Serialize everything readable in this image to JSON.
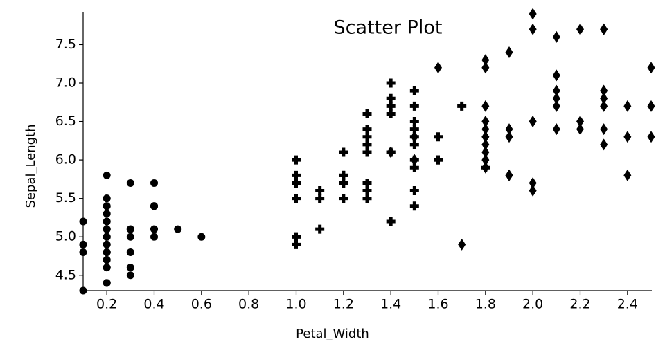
{
  "chart_data": {
    "type": "scatter",
    "title": "Scatter Plot",
    "xlabel": "Petal_Width",
    "ylabel": "Sepal_Length",
    "xlim": [
      0.1,
      2.5
    ],
    "ylim": [
      4.3,
      7.9
    ],
    "xticks": [
      0.2,
      0.4,
      0.6,
      0.8,
      {
        "value": 1,
        "label": "1.0"
      },
      1.2,
      1.4,
      1.6,
      1.8,
      {
        "value": 2,
        "label": "2.0"
      },
      2.2,
      2.4
    ],
    "yticks": [
      4.5,
      {
        "value": 5,
        "label": "5.0"
      },
      5.5,
      {
        "value": 6,
        "label": "6.0"
      },
      6.5,
      {
        "value": 7,
        "label": "7.0"
      },
      7.5
    ],
    "series": [
      {
        "marker": "circle",
        "color": "#000000",
        "x": [
          0.2,
          0.2,
          0.2,
          0.2,
          0.2,
          0.4,
          0.3,
          0.2,
          0.2,
          0.1,
          0.2,
          0.2,
          0.1,
          0.1,
          0.2,
          0.4,
          0.4,
          0.3,
          0.3,
          0.3,
          0.2,
          0.4,
          0.2,
          0.5,
          0.2,
          0.2,
          0.4,
          0.2,
          0.2,
          0.2,
          0.2,
          0.4,
          0.1,
          0.2,
          0.2,
          0.2,
          0.2,
          0.1,
          0.2,
          0.2,
          0.3,
          0.3,
          0.2,
          0.6,
          0.4,
          0.3,
          0.2,
          0.2,
          0.2,
          0.2
        ],
        "y": [
          5.1,
          4.9,
          4.7,
          4.6,
          5.0,
          5.4,
          4.6,
          5.0,
          4.4,
          4.9,
          5.4,
          4.8,
          4.8,
          4.3,
          5.8,
          5.7,
          5.4,
          5.1,
          5.7,
          5.1,
          5.4,
          5.1,
          4.6,
          5.1,
          4.8,
          5.0,
          5.0,
          5.2,
          5.2,
          4.7,
          4.8,
          5.4,
          5.2,
          5.5,
          4.9,
          5.0,
          5.5,
          4.9,
          4.4,
          5.1,
          5.0,
          4.5,
          4.4,
          5.0,
          5.1,
          4.8,
          5.1,
          4.6,
          5.3,
          5.0
        ]
      },
      {
        "marker": "cross",
        "color": "#000000",
        "x": [
          1.4,
          1.5,
          1.5,
          1.3,
          1.5,
          1.3,
          1.6,
          1.0,
          1.3,
          1.4,
          1.0,
          1.5,
          1.0,
          1.4,
          1.3,
          1.4,
          1.5,
          1.0,
          1.5,
          1.1,
          1.8,
          1.3,
          1.5,
          1.2,
          1.3,
          1.4,
          1.4,
          1.7,
          1.5,
          1.0,
          1.1,
          1.0,
          1.2,
          1.6,
          1.5,
          1.6,
          1.5,
          1.3,
          1.3,
          1.3,
          1.2,
          1.4,
          1.2,
          1.0,
          1.3,
          1.2,
          1.3,
          1.3,
          1.1,
          1.3
        ],
        "y": [
          7.0,
          6.4,
          6.9,
          5.5,
          6.5,
          5.7,
          6.3,
          4.9,
          6.6,
          5.2,
          5.0,
          5.9,
          6.0,
          6.1,
          5.6,
          6.7,
          5.6,
          5.8,
          6.2,
          5.6,
          5.9,
          6.1,
          6.3,
          6.1,
          6.4,
          6.6,
          6.8,
          6.7,
          6.0,
          5.7,
          5.5,
          5.5,
          5.8,
          6.0,
          5.4,
          6.0,
          6.7,
          6.3,
          5.6,
          5.5,
          5.5,
          6.1,
          5.8,
          5.0,
          5.6,
          5.7,
          5.7,
          6.2,
          5.1,
          5.7
        ]
      },
      {
        "marker": "diamond",
        "color": "#000000",
        "x": [
          2.5,
          1.9,
          2.1,
          1.8,
          2.2,
          2.1,
          1.7,
          1.8,
          1.8,
          2.5,
          2.0,
          1.9,
          2.1,
          2.0,
          2.4,
          2.3,
          1.8,
          2.2,
          2.3,
          1.5,
          2.3,
          2.0,
          2.0,
          1.8,
          2.1,
          1.8,
          1.8,
          1.8,
          2.1,
          1.6,
          1.9,
          2.0,
          2.2,
          1.5,
          1.4,
          2.3,
          2.4,
          1.8,
          1.8,
          2.1,
          2.4,
          2.3,
          1.9,
          2.3,
          2.5,
          2.3,
          1.9,
          2.0,
          2.3,
          1.8
        ],
        "y": [
          6.3,
          5.8,
          7.1,
          6.3,
          6.5,
          7.6,
          4.9,
          7.3,
          6.7,
          7.2,
          6.5,
          6.4,
          6.8,
          5.7,
          5.8,
          6.4,
          6.5,
          7.7,
          7.7,
          6.0,
          6.9,
          5.6,
          7.7,
          6.3,
          6.7,
          7.2,
          6.2,
          6.1,
          6.4,
          7.2,
          7.4,
          7.9,
          6.4,
          6.3,
          6.1,
          7.7,
          6.3,
          6.4,
          6.0,
          6.9,
          6.7,
          6.9,
          5.8,
          6.8,
          6.7,
          6.7,
          6.3,
          6.5,
          6.2,
          5.9
        ]
      }
    ]
  }
}
